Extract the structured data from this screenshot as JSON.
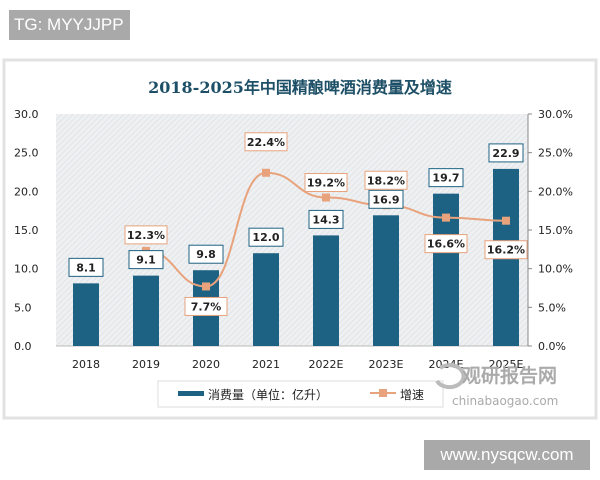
{
  "watermark_top": "TG: MYYJJPP",
  "watermark_bottom": "www.nysqcw.com",
  "source_logo": {
    "cn": "观研报告网",
    "en": "chinabaogao.com"
  },
  "colors": {
    "bar": "#1e6283",
    "line": "#e8a27c",
    "plot_bg": "#eceef0"
  },
  "chart_data": {
    "type": "bar+line",
    "title": "2018-2025年中国精酿啤酒消费量及增速",
    "categories": [
      "2018",
      "2019",
      "2020",
      "2021",
      "2022E",
      "2023E",
      "2024E",
      "2025E"
    ],
    "series": [
      {
        "name": "消费量（单位：亿升）",
        "type": "bar",
        "axis": "left",
        "values": [
          8.1,
          9.1,
          9.8,
          12.0,
          14.3,
          16.9,
          19.7,
          22.9
        ],
        "labels": [
          "8.1",
          "9.1",
          "9.8",
          "12.0",
          "14.3",
          "16.9",
          "19.7",
          "22.9"
        ]
      },
      {
        "name": "增速",
        "type": "line",
        "axis": "right",
        "values": [
          null,
          12.3,
          7.7,
          22.4,
          19.2,
          18.2,
          16.6,
          16.2
        ],
        "labels": [
          "",
          "12.3%",
          "7.7%",
          "22.4%",
          "19.2%",
          "18.2%",
          "16.6%",
          "16.2%"
        ]
      }
    ],
    "ylim_left": [
      0,
      30
    ],
    "ylim_right": [
      0,
      30
    ],
    "left_ticks": [
      "0.0",
      "5.0",
      "10.0",
      "15.0",
      "20.0",
      "25.0",
      "30.0"
    ],
    "right_ticks": [
      "0.0%",
      "5.0%",
      "10.0%",
      "15.0%",
      "20.0%",
      "25.0%",
      "30.0%"
    ],
    "legend_position": "bottom-left",
    "grid": false
  }
}
